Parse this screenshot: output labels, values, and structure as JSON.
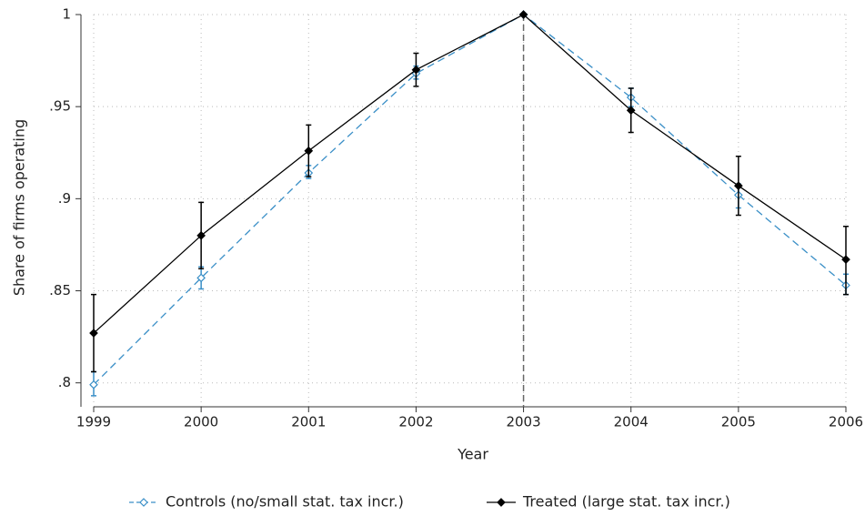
{
  "chart_data": {
    "type": "line",
    "x_label": "Year",
    "y_label": "Share of firms operating",
    "x": [
      1999,
      2000,
      2001,
      2002,
      2003,
      2004,
      2005,
      2006
    ],
    "xlim": [
      1999,
      2006
    ],
    "xticks": [
      1999,
      2000,
      2001,
      2002,
      2003,
      2004,
      2005,
      2006
    ],
    "ylim": [
      0.787,
      1.0
    ],
    "yticks": [
      {
        "value": 0.8,
        "label": ".8"
      },
      {
        "value": 0.85,
        "label": ".85"
      },
      {
        "value": 0.9,
        "label": ".9"
      },
      {
        "value": 0.95,
        "label": ".95"
      },
      1
    ],
    "grid": true,
    "vline": 2003,
    "series": [
      {
        "name": "Controls (no/small stat. tax incr.)",
        "color": "#3a8fc7",
        "dashed": true,
        "marker_filled": false,
        "values": [
          0.799,
          0.857,
          0.914,
          0.968,
          1.0,
          0.955,
          0.902,
          0.853
        ],
        "ci_low": [
          0.793,
          0.851,
          0.911,
          0.965,
          null,
          0.95,
          0.895,
          0.848
        ],
        "ci_high": [
          0.806,
          0.863,
          0.918,
          0.972,
          null,
          0.96,
          0.908,
          0.859
        ]
      },
      {
        "name": "Treated (large stat. tax incr.)",
        "color": "#000000",
        "dashed": false,
        "marker_filled": true,
        "values": [
          0.827,
          0.88,
          0.926,
          0.97,
          1.0,
          0.948,
          0.907,
          0.867
        ],
        "ci_low": [
          0.806,
          0.862,
          0.912,
          0.961,
          null,
          0.936,
          0.891,
          0.848
        ],
        "ci_high": [
          0.848,
          0.898,
          0.94,
          0.979,
          null,
          0.96,
          0.923,
          0.885
        ]
      }
    ]
  }
}
